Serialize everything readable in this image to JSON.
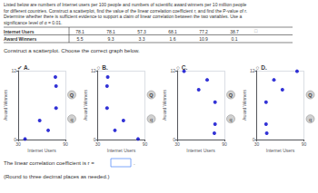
{
  "title": "Listed below are numbers of Internet users per 100 people and numbers of scientific award winners per 10 million people\nfor different countries. Construct a scatterplot, find the value of the linear correlation coefficient r, and find the P-value of r.\nDetermine whether there is sufficient evidence to support a claim of linear correlation between the two variables. Use a\nsignificance level of α = 0.01.",
  "table": {
    "rows": [
      {
        "label": "Internet Users",
        "values": [
          78.1,
          78.1,
          57.3,
          68.1,
          77.2,
          38.7
        ]
      },
      {
        "label": "Award Winners",
        "values": [
          5.5,
          9.3,
          3.3,
          1.6,
          10.9,
          0.1
        ]
      }
    ],
    "annotations": [
      "□"
    ]
  },
  "annotations": [
    "Construct a scatterplot. Choose the correct graph below.",
    "The linear correlation coefficient is r =",
    ".",
    "(Round to three decimal places as needed.)"
  ],
  "chart_data": [
    {
      "type": "scatter",
      "title": "✔ A.",
      "xlabel": "Internet Users",
      "ylabel": "Award Winners",
      "x": [
        78.1,
        78.1,
        57.3,
        68.1,
        77.2,
        38.7
      ],
      "values": [
        5.5,
        9.3,
        3.3,
        1.6,
        10.9,
        0.1
      ],
      "color": "#0000cc",
      "xlim": [
        30,
        90
      ],
      "ylim": [
        0,
        12
      ],
      "xticks": [
        30,
        90
      ],
      "yticks": [
        0,
        12
      ],
      "grid": true,
      "annotations": [
        "Q",
        "q"
      ]
    },
    {
      "type": "scatter",
      "title": "○ B.",
      "xlabel": "Internet Users",
      "ylabel": "Award Winners",
      "x": [
        41.9,
        41.9,
        62.7,
        51.9,
        42.8,
        81.3
      ],
      "values": [
        5.5,
        9.3,
        3.3,
        1.6,
        10.9,
        0.1
      ],
      "color": "#0000cc",
      "xlim": [
        30,
        90
      ],
      "ylim": [
        0,
        12
      ],
      "xticks": [
        30,
        90
      ],
      "yticks": [
        0,
        12
      ],
      "grid": true,
      "annotations": [
        "Q",
        "q"
      ]
    },
    {
      "type": "scatter",
      "title": "○ C.",
      "xlabel": "Internet Users",
      "ylabel": "Award Winners",
      "x": [
        78.1,
        78.1,
        57.3,
        68.1,
        77.2,
        38.7
      ],
      "values": [
        6.5,
        2.7,
        8.7,
        10.4,
        1.1,
        11.9
      ],
      "color": "#0000cc",
      "xlim": [
        30,
        90
      ],
      "ylim": [
        0,
        12
      ],
      "xticks": [
        30,
        90
      ],
      "yticks": [
        0,
        12
      ],
      "grid": true,
      "annotations": [
        "Q",
        "q"
      ]
    },
    {
      "type": "scatter",
      "title": "○ D.",
      "xlabel": "Internet Users",
      "ylabel": "Award Winners",
      "x": [
        41.9,
        41.9,
        62.7,
        51.9,
        42.8,
        81.3
      ],
      "values": [
        6.5,
        2.7,
        8.7,
        10.4,
        1.1,
        11.9
      ],
      "color": "#0000cc",
      "xlim": [
        30,
        90
      ],
      "ylim": [
        0,
        12
      ],
      "xticks": [
        30,
        90
      ],
      "yticks": [
        0,
        12
      ],
      "grid": true,
      "annotations": [
        "Q",
        "q"
      ]
    }
  ]
}
